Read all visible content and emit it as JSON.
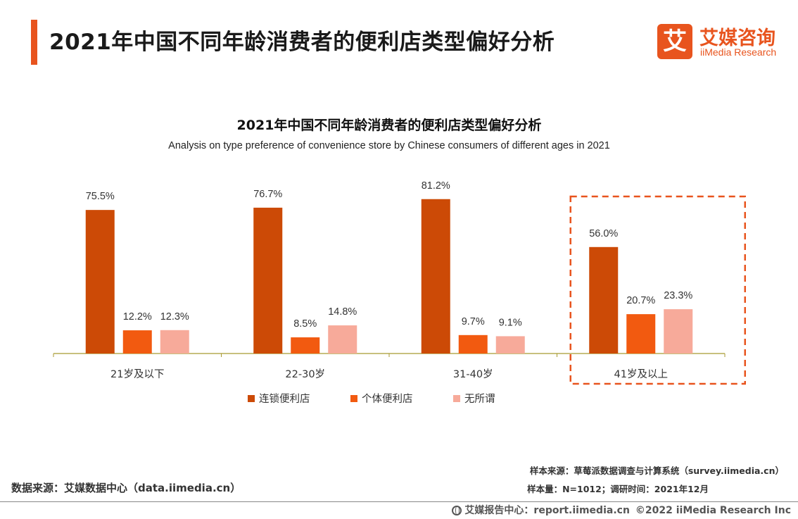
{
  "header": {
    "title": "2021年中国不同年龄消费者的便利店类型偏好分析",
    "logo_mark": "艾",
    "logo_cn": "艾媒咨询",
    "logo_en": "iiMedia Research"
  },
  "colors": {
    "accent": "#e8541e",
    "chain": "#cc4a06",
    "independent": "#f25a10",
    "indifferent": "#f7aa9a",
    "axis": "#a89a30",
    "highlight": "#e8541e"
  },
  "chart_data": {
    "type": "bar",
    "title": "2021年中国不同年龄消费者的便利店类型偏好分析",
    "subtitle": "Analysis on type preference of convenience store by Chinese consumers of different ages in 2021",
    "categories": [
      "21岁及以下",
      "22-30岁",
      "31-40岁",
      "41岁及以上"
    ],
    "series": [
      {
        "name": "连锁便利店",
        "values": [
          75.5,
          76.7,
          81.2,
          56.0
        ]
      },
      {
        "name": "个体便利店",
        "values": [
          12.2,
          8.5,
          9.7,
          20.7
        ]
      },
      {
        "name": "无所谓",
        "values": [
          12.3,
          14.8,
          9.1,
          23.3
        ]
      }
    ],
    "unit": "%",
    "ylim": [
      0,
      90
    ],
    "highlighted_category": "41岁及以上",
    "legend_position": "bottom",
    "grid": false
  },
  "footer": {
    "data_source": "数据来源：艾媒数据中心（data.iimedia.cn）",
    "sample_source": "样本来源：草莓派数据调查与计算系统（survey.iimedia.cn）",
    "sample_size": "样本量：N=1012；调研时间：2021年12月",
    "report_center": "艾媒报告中心：report.iimedia.cn",
    "copyright": "©2022  iiMedia Research  Inc"
  }
}
